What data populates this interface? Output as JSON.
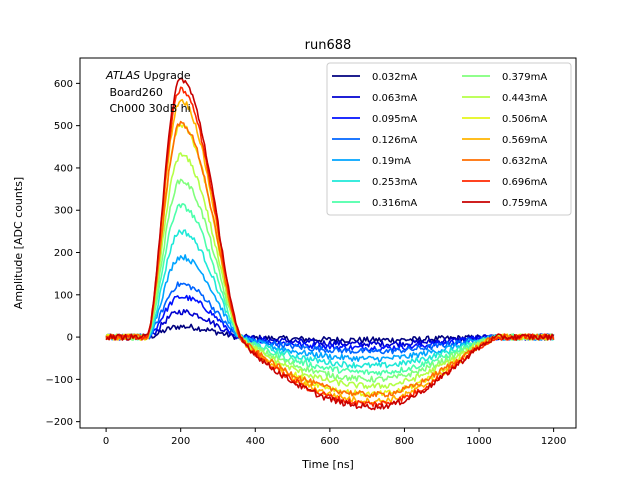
{
  "chart_data": {
    "type": "line",
    "title": "run688",
    "xlabel": "Time [ns]",
    "ylabel": "Amplitude [ADC counts]",
    "xlim": [
      -70,
      1260
    ],
    "ylim": [
      -215,
      660
    ],
    "xticks": [
      0,
      200,
      400,
      600,
      800,
      1000,
      1200
    ],
    "yticks": [
      -200,
      -100,
      0,
      100,
      200,
      300,
      400,
      500,
      600
    ],
    "annotation": {
      "atlas": "ATLAS",
      "upgrade": " Upgrade",
      "line2": " Board260",
      "line3": " Ch000 30dB hi"
    },
    "legend_columns": 2,
    "legend_location": "upper right",
    "pulse_model": {
      "baseline_start_ns": 0,
      "pulse_start_ns": 110,
      "pulse_peak_ns": 200,
      "zero_crossing_ns": 360,
      "undershoot_min_ns": 720,
      "undershoot_end_ns": 1050,
      "end_ns": 1200,
      "undershoot_to_peak_ratio": 0.27
    },
    "series": [
      {
        "name": "0.032mA",
        "color": "#00007f",
        "peak": 25
      },
      {
        "name": "0.063mA",
        "color": "#0000d0",
        "peak": 60
      },
      {
        "name": "0.095mA",
        "color": "#0010ff",
        "peak": 95
      },
      {
        "name": "0.126mA",
        "color": "#0064ff",
        "peak": 125
      },
      {
        "name": "0.19mA",
        "color": "#00a4ff",
        "peak": 190
      },
      {
        "name": "0.253mA",
        "color": "#1fe8d8",
        "peak": 250
      },
      {
        "name": "0.316mA",
        "color": "#4dffaa",
        "peak": 310
      },
      {
        "name": "0.379mA",
        "color": "#80ff7c",
        "peak": 370
      },
      {
        "name": "0.443mA",
        "color": "#b4ff46",
        "peak": 430
      },
      {
        "name": "0.506mA",
        "color": "#e4f61a",
        "peak": 500
      },
      {
        "name": "0.569mA",
        "color": "#ffb400",
        "peak": 560
      },
      {
        "name": "0.632mA",
        "color": "#ff6e00",
        "peak": 505
      },
      {
        "name": "0.696mA",
        "color": "#ff2800",
        "peak": 585
      },
      {
        "name": "0.759mA",
        "color": "#c80000",
        "peak": 610
      }
    ]
  }
}
